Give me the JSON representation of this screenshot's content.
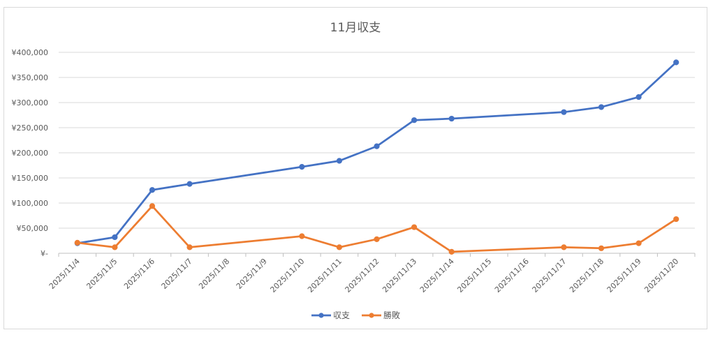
{
  "chart_data": {
    "type": "line",
    "title": "11月収支",
    "xlabel": "",
    "ylabel": "",
    "ylim": [
      0,
      400000
    ],
    "y_ticks": [
      {
        "value": 0,
        "label": "¥-"
      },
      {
        "value": 50000,
        "label": "¥50,000"
      },
      {
        "value": 100000,
        "label": "¥100,000"
      },
      {
        "value": 150000,
        "label": "¥150,000"
      },
      {
        "value": 200000,
        "label": "¥200,000"
      },
      {
        "value": 250000,
        "label": "¥250,000"
      },
      {
        "value": 300000,
        "label": "¥300,000"
      },
      {
        "value": 350000,
        "label": "¥350,000"
      },
      {
        "value": 400000,
        "label": "¥400,000"
      }
    ],
    "x": [
      "2025/11/4",
      "2025/11/5",
      "2025/11/6",
      "2025/11/7",
      "2025/11/8",
      "2025/11/9",
      "2025/11/10",
      "2025/11/11",
      "2025/11/12",
      "2025/11/13",
      "2025/11/14",
      "2025/11/15",
      "2025/11/16",
      "2025/11/17",
      "2025/11/18",
      "2025/11/19",
      "2025/11/20"
    ],
    "series": [
      {
        "name": "収支",
        "color": "#4472c4",
        "points": [
          {
            "x": "2025/11/4",
            "y": 20000
          },
          {
            "x": "2025/11/5",
            "y": 32000
          },
          {
            "x": "2025/11/6",
            "y": 126000
          },
          {
            "x": "2025/11/7",
            "y": 138000
          },
          {
            "x": "2025/11/10",
            "y": 172000
          },
          {
            "x": "2025/11/11",
            "y": 184000
          },
          {
            "x": "2025/11/12",
            "y": 213000
          },
          {
            "x": "2025/11/13",
            "y": 265000
          },
          {
            "x": "2025/11/14",
            "y": 268000
          },
          {
            "x": "2025/11/17",
            "y": 281000
          },
          {
            "x": "2025/11/18",
            "y": 291000
          },
          {
            "x": "2025/11/19",
            "y": 311000
          },
          {
            "x": "2025/11/20",
            "y": 380000
          }
        ]
      },
      {
        "name": "勝敗",
        "color": "#ed7d31",
        "points": [
          {
            "x": "2025/11/4",
            "y": 21000
          },
          {
            "x": "2025/11/5",
            "y": 12000
          },
          {
            "x": "2025/11/6",
            "y": 94000
          },
          {
            "x": "2025/11/7",
            "y": 12000
          },
          {
            "x": "2025/11/10",
            "y": 34000
          },
          {
            "x": "2025/11/11",
            "y": 12000
          },
          {
            "x": "2025/11/12",
            "y": 28000
          },
          {
            "x": "2025/11/13",
            "y": 52000
          },
          {
            "x": "2025/11/14",
            "y": 3000
          },
          {
            "x": "2025/11/17",
            "y": 12000
          },
          {
            "x": "2025/11/18",
            "y": 10000
          },
          {
            "x": "2025/11/19",
            "y": 20000
          },
          {
            "x": "2025/11/20",
            "y": 68000
          }
        ]
      }
    ],
    "grid": true,
    "legend": "bottom"
  }
}
